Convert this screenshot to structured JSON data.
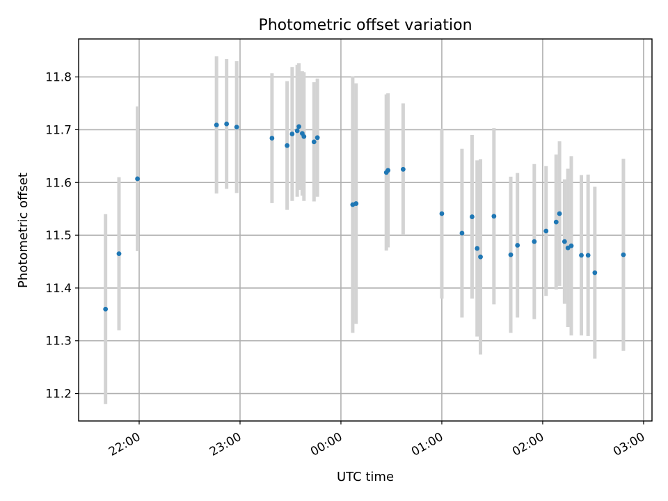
{
  "chart_data": {
    "type": "scatter",
    "title": "Photometric offset variation",
    "xlabel": "UTC time",
    "ylabel": "Photometric offset",
    "x_axis": "time",
    "xlim": [
      "21:24",
      "03:05"
    ],
    "ylim": [
      11.148,
      11.872
    ],
    "x_ticks": [
      "22:00",
      "23:00",
      "00:00",
      "01:00",
      "02:00",
      "03:00"
    ],
    "y_ticks": [
      "11.2",
      "11.3",
      "11.4",
      "11.5",
      "11.6",
      "11.7",
      "11.8"
    ],
    "grid": true,
    "point_color": "#1f77b4",
    "errorbar_color": "#d3d3d3",
    "points": [
      {
        "t": "21:40",
        "y": 11.36,
        "err": 0.18
      },
      {
        "t": "21:48",
        "y": 11.465,
        "err": 0.145
      },
      {
        "t": "21:59",
        "y": 11.607,
        "err": 0.137
      },
      {
        "t": "22:46",
        "y": 11.709,
        "err": 0.13
      },
      {
        "t": "22:52",
        "y": 11.711,
        "err": 0.123
      },
      {
        "t": "22:58",
        "y": 11.705,
        "err": 0.125
      },
      {
        "t": "23:19",
        "y": 11.684,
        "err": 0.123
      },
      {
        "t": "23:28",
        "y": 11.67,
        "err": 0.122
      },
      {
        "t": "23:31",
        "y": 11.692,
        "err": 0.127
      },
      {
        "t": "23:34",
        "y": 11.698,
        "err": 0.125
      },
      {
        "t": "23:35",
        "y": 11.706,
        "err": 0.12
      },
      {
        "t": "23:37",
        "y": 11.693,
        "err": 0.118
      },
      {
        "t": "23:38",
        "y": 11.687,
        "err": 0.122
      },
      {
        "t": "23:44",
        "y": 11.677,
        "err": 0.113
      },
      {
        "t": "23:46",
        "y": 11.685,
        "err": 0.112
      },
      {
        "t": "00:07",
        "y": 11.558,
        "err": 0.243
      },
      {
        "t": "00:09",
        "y": 11.56,
        "err": 0.228
      },
      {
        "t": "00:27",
        "y": 11.619,
        "err": 0.148
      },
      {
        "t": "00:28",
        "y": 11.623,
        "err": 0.146
      },
      {
        "t": "00:37",
        "y": 11.625,
        "err": 0.125
      },
      {
        "t": "01:00",
        "y": 11.541,
        "err": 0.161
      },
      {
        "t": "01:12",
        "y": 11.504,
        "err": 0.16
      },
      {
        "t": "01:18",
        "y": 11.535,
        "err": 0.155
      },
      {
        "t": "01:21",
        "y": 11.475,
        "err": 0.167
      },
      {
        "t": "01:23",
        "y": 11.459,
        "err": 0.185
      },
      {
        "t": "01:31",
        "y": 11.536,
        "err": 0.167
      },
      {
        "t": "01:41",
        "y": 11.463,
        "err": 0.148
      },
      {
        "t": "01:45",
        "y": 11.481,
        "err": 0.137
      },
      {
        "t": "01:55",
        "y": 11.488,
        "err": 0.147
      },
      {
        "t": "02:02",
        "y": 11.508,
        "err": 0.123
      },
      {
        "t": "02:08",
        "y": 11.525,
        "err": 0.128
      },
      {
        "t": "02:10",
        "y": 11.541,
        "err": 0.137
      },
      {
        "t": "02:13",
        "y": 11.488,
        "err": 0.118
      },
      {
        "t": "02:15",
        "y": 11.476,
        "err": 0.15
      },
      {
        "t": "02:17",
        "y": 11.48,
        "err": 0.17
      },
      {
        "t": "02:23",
        "y": 11.462,
        "err": 0.152
      },
      {
        "t": "02:27",
        "y": 11.462,
        "err": 0.153
      },
      {
        "t": "02:31",
        "y": 11.429,
        "err": 0.163
      },
      {
        "t": "02:48",
        "y": 11.463,
        "err": 0.182
      }
    ]
  }
}
